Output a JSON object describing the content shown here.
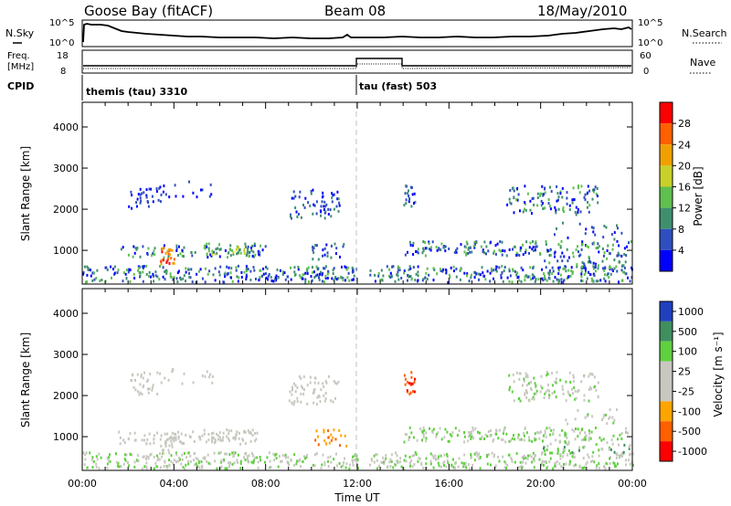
{
  "header": {
    "title": "Goose Bay (fitACF)",
    "beam": "Beam 08",
    "date": "18/May/2010"
  },
  "panel_labels": {
    "nsky": "N.Sky",
    "nsearch": "N.Search",
    "freq_line1": "Freq.",
    "freq_line2": "[MHz]",
    "nave": "Nave",
    "cpid": "CPID"
  },
  "nsky_ticks": {
    "top": "10^5",
    "bottom": "10^0"
  },
  "nsearch_ticks": {
    "top": "10^5",
    "bottom": "10^0"
  },
  "freq_ticks": {
    "top": "18",
    "bottom": "8"
  },
  "nave_ticks": {
    "top": "60",
    "bottom": "0"
  },
  "cpid": [
    {
      "label": "themis (tau) 3310",
      "start_h": 0
    },
    {
      "label": "tau (fast) 503",
      "start_h": 12
    }
  ],
  "colors": {
    "power": [
      "#0000ff",
      "#2f4fbf",
      "#3f8f6f",
      "#5fbf4f",
      "#c8d02a",
      "#f0a000",
      "#ff6000",
      "#ff0000"
    ],
    "velocity": [
      "#ff0000",
      "#ff6000",
      "#ffa500",
      "#c8c8c0",
      "#c8c8c0",
      "#60d040",
      "#3f8f5f",
      "#2040c0"
    ],
    "guide": "#c0c0c0"
  },
  "chart_data": [
    {
      "type": "heatmap",
      "name": "power",
      "xlabel": "",
      "ylabel": "Slant Range [km]",
      "x_ticks": [
        "00:00",
        "04:00",
        "08:00",
        "12:00",
        "16:00",
        "20:00",
        "00:00"
      ],
      "y_ticks": [
        "1000",
        "2000",
        "3000",
        "4000"
      ],
      "xlim_hours": [
        0,
        24
      ],
      "ylim_km": [
        180,
        4600
      ],
      "colorbar_label": "Power [dB]",
      "colorbar_ticks": [
        "4",
        "8",
        "12",
        "16",
        "20",
        "24",
        "28"
      ]
    },
    {
      "type": "heatmap",
      "name": "velocity",
      "xlabel": "Time UT",
      "ylabel": "Slant Range [km]",
      "x_ticks": [
        "00:00",
        "04:00",
        "08:00",
        "12:00",
        "16:00",
        "20:00",
        "00:00"
      ],
      "y_ticks": [
        "1000",
        "2000",
        "3000",
        "4000"
      ],
      "xlim_hours": [
        0,
        24
      ],
      "ylim_km": [
        180,
        4600
      ],
      "colorbar_label": "Velocity [m s⁻¹]",
      "colorbar_ticks": [
        "1000",
        "500",
        "100",
        "25",
        "-25",
        "-100",
        "-500",
        "-1000"
      ]
    }
  ]
}
